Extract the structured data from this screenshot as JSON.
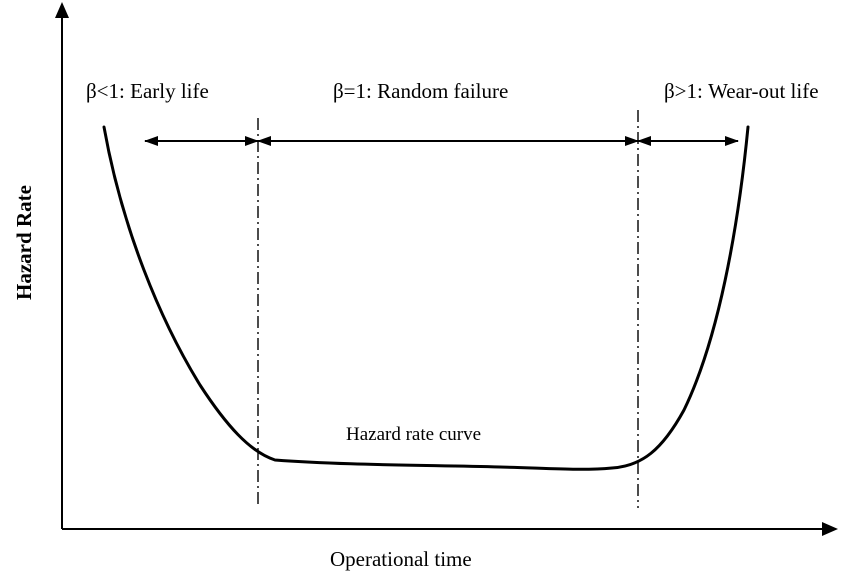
{
  "diagram": {
    "y_axis_label": "Hazard Rate",
    "x_axis_label": "Operational time",
    "curve_label": "Hazard rate curve",
    "phases": [
      {
        "label": "β<1: Early life"
      },
      {
        "label": "β=1: Random failure"
      },
      {
        "label": "β>1: Wear-out life"
      }
    ]
  },
  "colors": {
    "ink": "#000000",
    "background": "#ffffff"
  }
}
